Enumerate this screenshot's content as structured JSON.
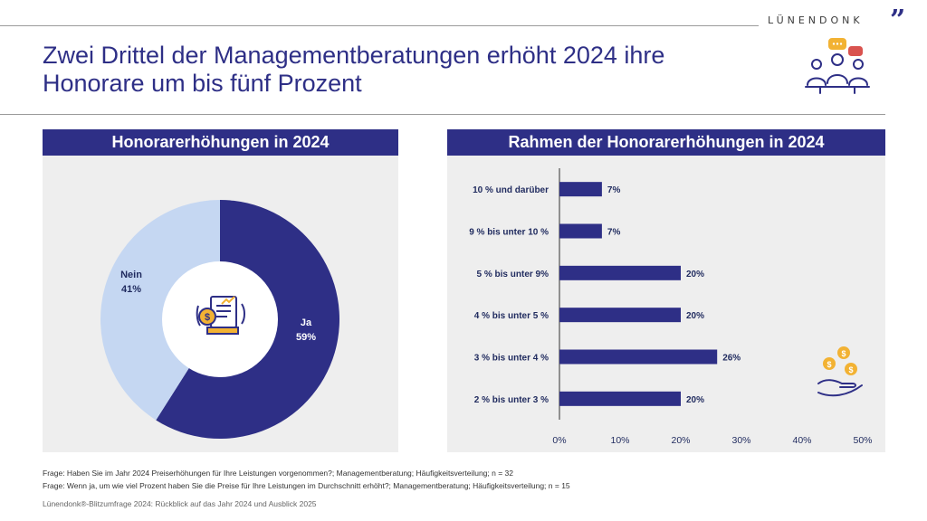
{
  "brand": {
    "name": "LÜNENDONK",
    "mark": "”",
    "accent": "#2e2f86",
    "light": "#c5d7f2"
  },
  "page": {
    "title_line1": "Zwei Drittel der Managementberatungen erhöht 2024 ihre",
    "title_line2": "Honorare um bis fünf Prozent",
    "hero_icon": "people-discussion-icon"
  },
  "chart_data": [
    {
      "type": "pie",
      "title": "Honorarerhöhungen in 2024",
      "donut": true,
      "center_icon": "invoice-price-increase-icon",
      "slices": [
        {
          "label": "Ja",
          "value": 59,
          "display": "59%",
          "color": "#2e2f86"
        },
        {
          "label": "Nein",
          "value": 41,
          "display": "41%",
          "color": "#c5d7f2"
        }
      ]
    },
    {
      "type": "bar",
      "orientation": "horizontal",
      "title": "Rahmen der Honorarerhöhungen in 2024",
      "categories": [
        "10 % und darüber",
        "9 % bis unter 10 %",
        "5 % bis unter 9%",
        "4 % bis unter 5 %",
        "3 % bis unter 4 %",
        "2 % bis unter 3 %"
      ],
      "values": [
        7,
        7,
        20,
        20,
        26,
        20
      ],
      "value_labels": [
        "7%",
        "7%",
        "20%",
        "20%",
        "26%",
        "20%"
      ],
      "xlim": [
        0,
        50
      ],
      "xticks": [
        0,
        10,
        20,
        30,
        40,
        50
      ],
      "xtick_labels": [
        "0%",
        "10%",
        "20%",
        "30%",
        "40%",
        "50%"
      ],
      "color": "#2e2f86",
      "grid": false,
      "decor_icon": "coins-in-hand-icon"
    }
  ],
  "footnotes": {
    "q1": "Frage: Haben Sie im Jahr 2024 Preiserhöhungen für Ihre Leistungen vorgenommen?; Managementberatung; Häufigkeitsverteilung; n = 32",
    "q2": "Frage: Wenn ja, um wie viel Prozent haben Sie die Preise für Ihre Leistungen im Durchschnitt erhöht?; Managementberatung; Häufigkeitsverteilung; n = 15",
    "source": "Lünendonk®-Blitzumfrage 2024: Rückblick auf das Jahr 2024 und Ausblick 2025"
  }
}
